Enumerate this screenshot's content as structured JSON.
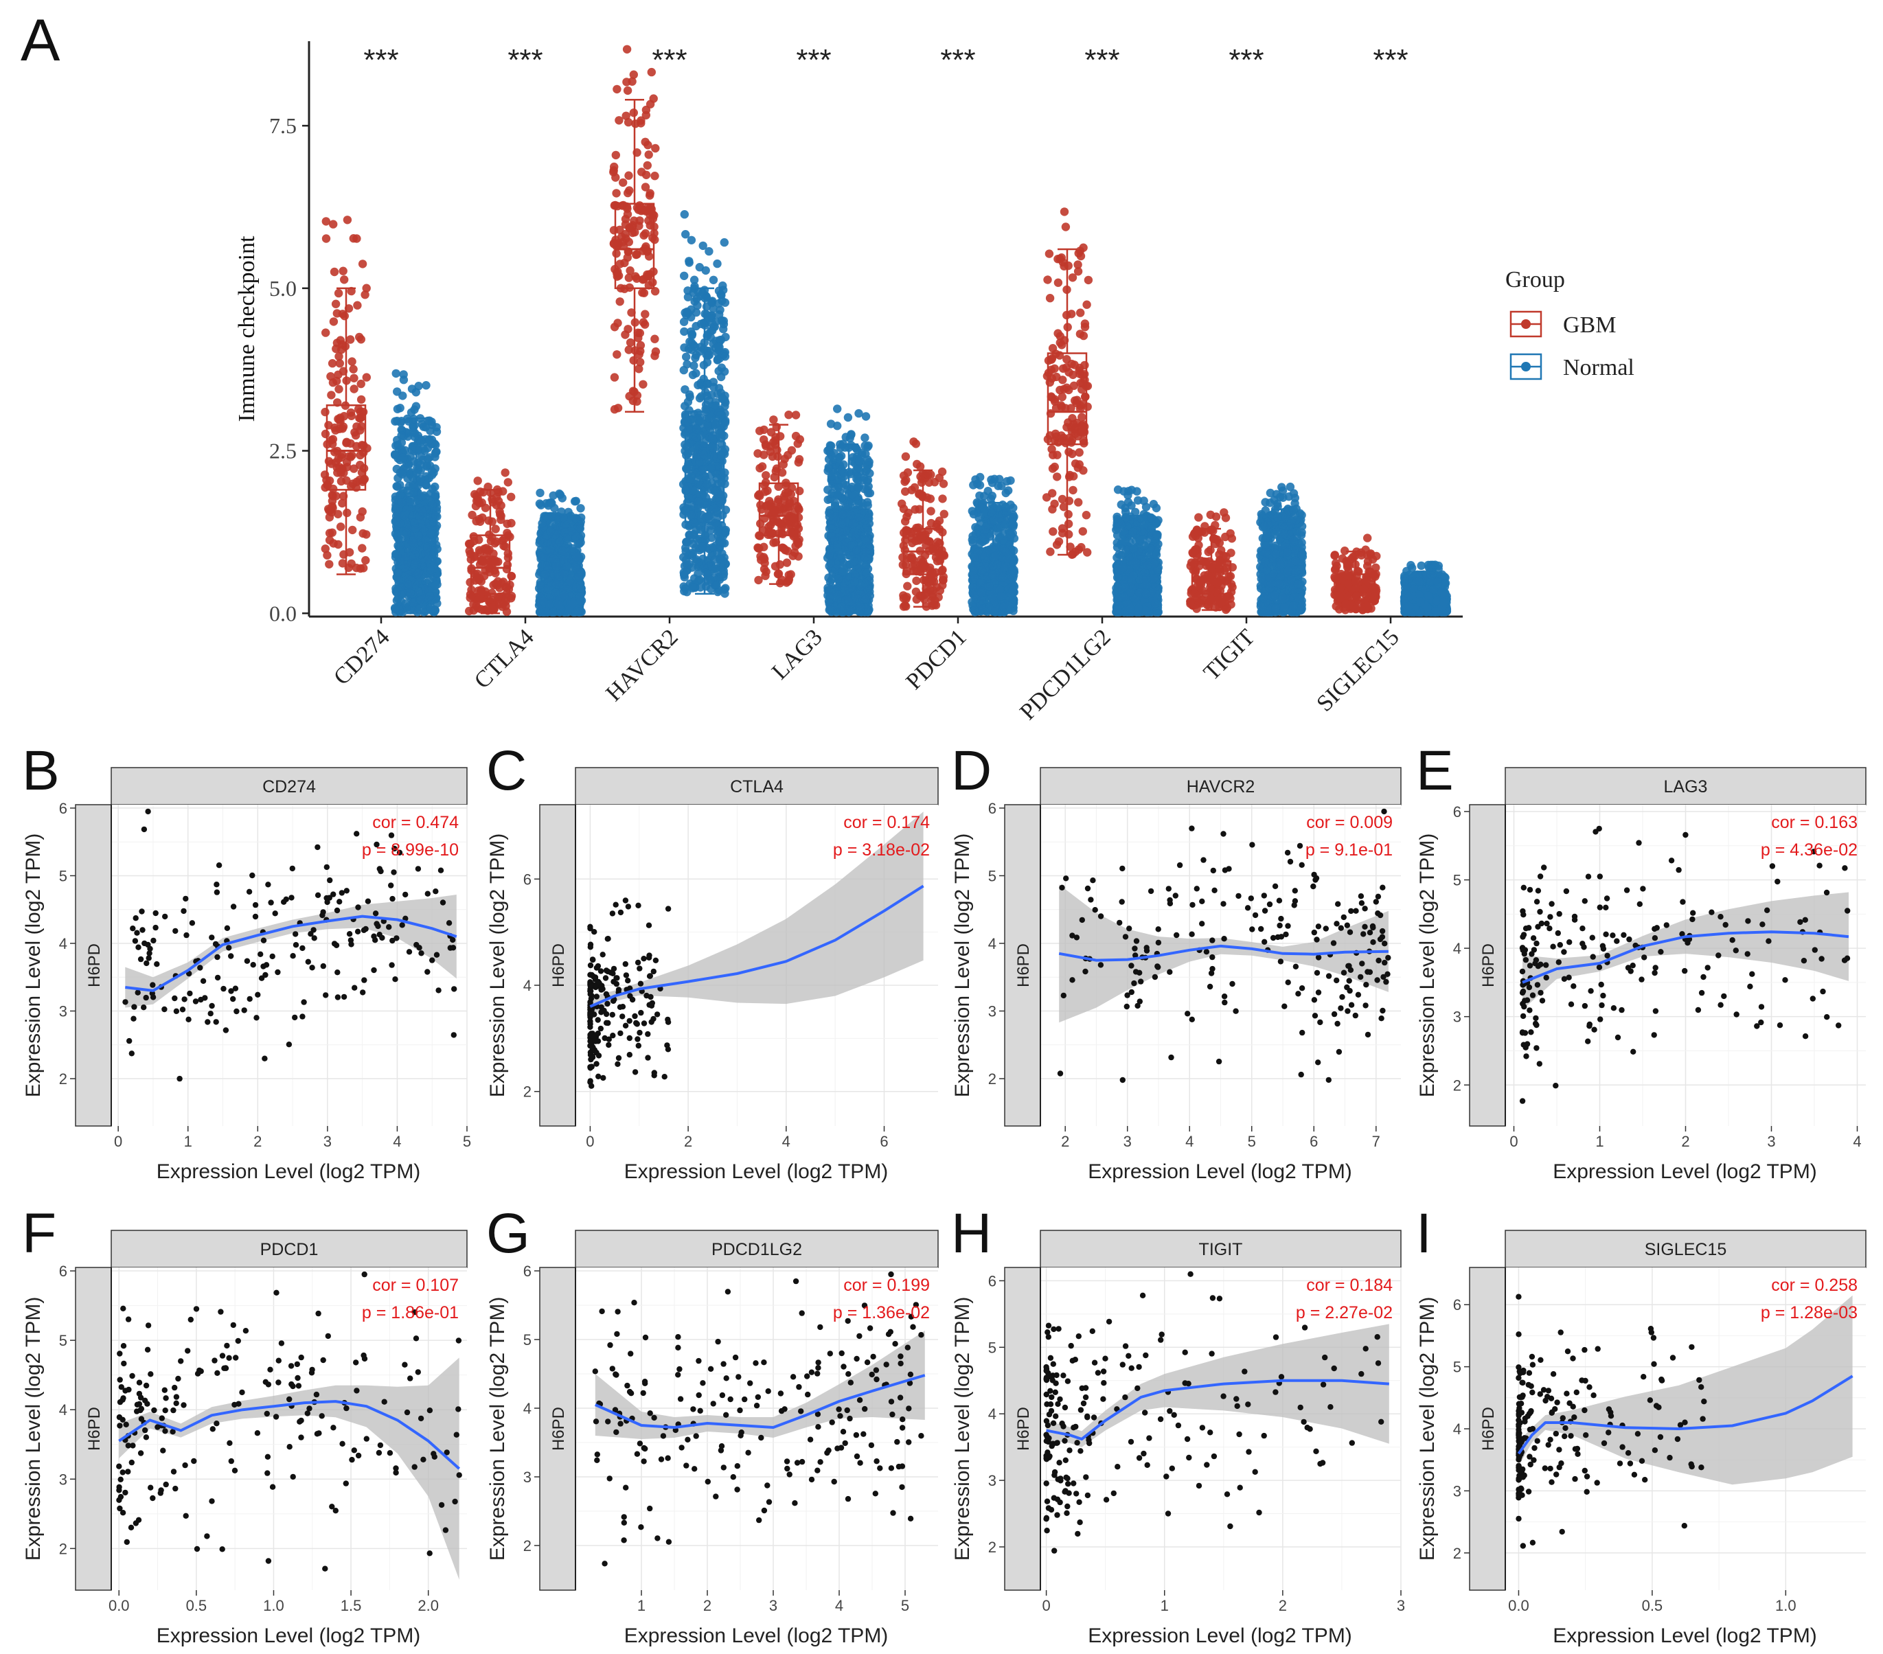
{
  "figure": {
    "colors": {
      "gbm": "#c0392b",
      "normal": "#1f77b4",
      "cor_text": "#e31a1c",
      "loess": "#3366ff",
      "ribbon": "#bdbdbd",
      "strip": "#d9d9d9"
    }
  },
  "chart_data": [
    {
      "panel": "A",
      "type": "box",
      "ylabel": "Immune checkpoint",
      "ylim": [
        -0.05,
        8.8
      ],
      "yticks": [
        "0.0",
        "2.5",
        "5.0",
        "7.5"
      ],
      "ytick_values": [
        0,
        2.5,
        5,
        7.5
      ],
      "categories": [
        "CD274",
        "CTLA4",
        "HAVCR2",
        "LAG3",
        "PDCD1",
        "PDCD1LG2",
        "TIGIT",
        "SIGLEC15"
      ],
      "significance": [
        "***",
        "***",
        "***",
        "***",
        "***",
        "***",
        "***",
        "***"
      ],
      "legend": {
        "title": "Group",
        "entries": [
          "GBM",
          "Normal"
        ],
        "position": "right"
      },
      "series": [
        {
          "name": "GBM",
          "boxes": [
            {
              "min": 0.6,
              "q1": 1.9,
              "median": 2.5,
              "q3": 3.2,
              "max": 5.0
            },
            {
              "min": 0.0,
              "q1": 0.3,
              "median": 0.7,
              "q3": 1.2,
              "max": 1.9
            },
            {
              "min": 3.1,
              "q1": 5.0,
              "median": 5.6,
              "q3": 6.3,
              "max": 7.9
            },
            {
              "min": 0.45,
              "q1": 1.2,
              "median": 1.5,
              "q3": 2.0,
              "max": 2.9
            },
            {
              "min": 0.1,
              "q1": 0.6,
              "median": 0.95,
              "q3": 1.3,
              "max": 2.2
            },
            {
              "min": 0.9,
              "q1": 2.6,
              "median": 3.1,
              "q3": 4.0,
              "max": 5.6
            },
            {
              "min": 0.05,
              "q1": 0.3,
              "median": 0.5,
              "q3": 0.8,
              "max": 1.3
            },
            {
              "min": 0.05,
              "q1": 0.2,
              "median": 0.35,
              "q3": 0.6,
              "max": 0.95
            }
          ]
        },
        {
          "name": "Normal",
          "boxes": [
            {
              "min": 0.0,
              "q1": 0.6,
              "median": 1.1,
              "q3": 1.8,
              "max": 3.0
            },
            {
              "min": 0.0,
              "q1": 0.2,
              "median": 0.5,
              "q3": 0.9,
              "max": 1.5
            },
            {
              "min": 0.3,
              "q1": 1.4,
              "median": 2.2,
              "q3": 3.1,
              "max": 5.0
            },
            {
              "min": 0.0,
              "q1": 0.4,
              "median": 0.9,
              "q3": 1.6,
              "max": 2.6
            },
            {
              "min": 0.0,
              "q1": 0.3,
              "median": 0.6,
              "q3": 1.0,
              "max": 1.7
            },
            {
              "min": 0.0,
              "q1": 0.2,
              "median": 0.45,
              "q3": 0.8,
              "max": 1.5
            },
            {
              "min": 0.0,
              "q1": 0.3,
              "median": 0.6,
              "q3": 1.0,
              "max": 1.6
            },
            {
              "min": 0.0,
              "q1": 0.1,
              "median": 0.2,
              "q3": 0.35,
              "max": 0.6
            }
          ]
        }
      ]
    },
    {
      "panel": "B",
      "type": "scatter",
      "strip": "CD274",
      "ylabel": "Expression Level (log2 TPM)",
      "xlabel": "Expression Level (log2 TPM)",
      "side_label": "H6PD",
      "cor": "cor = 0.474",
      "p": "p = 8.99e-10",
      "xlim": [
        -0.1,
        5.0
      ],
      "ylim": [
        1.3,
        6.05
      ],
      "xticks": [
        0,
        1,
        2,
        3,
        4,
        5
      ],
      "xtick_labels": [
        "0",
        "1",
        "2",
        "3",
        "4",
        "5"
      ],
      "yticks": [
        2,
        3,
        4,
        5,
        6
      ],
      "ytick_labels": [
        "2",
        "3",
        "4",
        "5",
        "6"
      ],
      "xmin": 0.1,
      "xmax": 4.85,
      "xmode": "uniform",
      "x_density": 1.8,
      "ymean": 3.9,
      "ysd": 0.68,
      "n": 200,
      "seed": 11,
      "loess_x": [
        0.1,
        0.5,
        1.0,
        1.5,
        2.0,
        2.5,
        3.0,
        3.5,
        4.0,
        4.5,
        4.85
      ],
      "loess_y": [
        3.35,
        3.3,
        3.6,
        3.98,
        4.12,
        4.25,
        4.33,
        4.4,
        4.35,
        4.22,
        4.1
      ],
      "band": [
        0.3,
        0.2,
        0.12,
        0.1,
        0.1,
        0.1,
        0.12,
        0.17,
        0.27,
        0.45,
        0.62
      ]
    },
    {
      "panel": "C",
      "type": "scatter",
      "strip": "CTLA4",
      "ylabel": "Expression Level (log2 TPM)",
      "xlabel": "Expression Level (log2 TPM)",
      "side_label": "H6PD",
      "cor": "cor = 0.174",
      "p": "p = 3.18e-02",
      "xlim": [
        -0.3,
        7.1
      ],
      "ylim": [
        1.35,
        7.4
      ],
      "xticks": [
        0,
        2,
        4,
        6
      ],
      "xtick_labels": [
        "0",
        "2",
        "4",
        "6"
      ],
      "yticks": [
        2,
        4,
        6
      ],
      "ytick_labels": [
        "2",
        "4",
        "6"
      ],
      "xmin": 0.0,
      "xmax": 1.6,
      "xmode": "right",
      "x_density": 3.0,
      "ymean": 3.7,
      "ysd": 0.7,
      "n": 200,
      "seed": 23,
      "loess_x": [
        0,
        0.5,
        1.0,
        2.0,
        3.0,
        4.0,
        5.0,
        6.0,
        6.8
      ],
      "loess_y": [
        3.6,
        3.8,
        3.93,
        4.07,
        4.22,
        4.45,
        4.85,
        5.4,
        5.87
      ],
      "band": [
        0.18,
        0.1,
        0.12,
        0.3,
        0.55,
        0.8,
        1.05,
        1.25,
        1.4
      ]
    },
    {
      "panel": "D",
      "type": "scatter",
      "strip": "HAVCR2",
      "ylabel": "Expression Level (log2 TPM)",
      "xlabel": "Expression Level (log2 TPM)",
      "side_label": "H6PD",
      "cor": "cor = 0.009",
      "p": "p = 9.1e-01",
      "xlim": [
        1.6,
        7.4
      ],
      "ylim": [
        1.3,
        6.05
      ],
      "xticks": [
        2,
        3,
        4,
        5,
        6,
        7
      ],
      "xtick_labels": [
        "2",
        "3",
        "4",
        "5",
        "6",
        "7"
      ],
      "yticks": [
        2,
        3,
        4,
        5,
        6
      ],
      "ytick_labels": [
        "2",
        "3",
        "4",
        "5",
        "6"
      ],
      "xmin": 1.9,
      "xmax": 7.2,
      "xmode": "left",
      "x_density": 1.5,
      "ymean": 3.85,
      "ysd": 0.75,
      "n": 200,
      "seed": 37,
      "loess_x": [
        1.9,
        2.5,
        3.0,
        3.5,
        4.0,
        4.5,
        5.0,
        5.5,
        6.0,
        6.5,
        7.2
      ],
      "loess_y": [
        3.85,
        3.75,
        3.76,
        3.82,
        3.9,
        3.96,
        3.92,
        3.85,
        3.84,
        3.87,
        3.88
      ],
      "band": [
        1.02,
        0.7,
        0.45,
        0.28,
        0.17,
        0.12,
        0.1,
        0.1,
        0.18,
        0.35,
        0.6
      ]
    },
    {
      "panel": "E",
      "type": "scatter",
      "strip": "LAG3",
      "ylabel": "Expression Level (log2 TPM)",
      "xlabel": "Expression Level (log2 TPM)",
      "side_label": "H6PD",
      "cor": "cor = 0.163",
      "p": "p = 4.36e-02",
      "xlim": [
        -0.1,
        4.1
      ],
      "ylim": [
        1.4,
        6.1
      ],
      "xticks": [
        0,
        1,
        2,
        3,
        4
      ],
      "xtick_labels": [
        "0",
        "1",
        "2",
        "3",
        "4"
      ],
      "yticks": [
        2,
        3,
        4,
        5,
        6
      ],
      "ytick_labels": [
        "2",
        "3",
        "4",
        "5",
        "6"
      ],
      "xmin": 0.1,
      "xmax": 3.9,
      "xmode": "right",
      "x_density": 2.2,
      "ymean": 3.8,
      "ysd": 0.75,
      "n": 200,
      "seed": 41,
      "loess_x": [
        0.1,
        0.5,
        1.0,
        1.5,
        2.0,
        2.5,
        3.0,
        3.5,
        3.9
      ],
      "loess_y": [
        3.5,
        3.7,
        3.78,
        4.03,
        4.17,
        4.22,
        4.24,
        4.22,
        4.17
      ],
      "band": [
        0.4,
        0.15,
        0.12,
        0.15,
        0.25,
        0.35,
        0.45,
        0.55,
        0.65
      ]
    },
    {
      "panel": "F",
      "type": "scatter",
      "strip": "PDCD1",
      "ylabel": "Expression Level (log2 TPM)",
      "xlabel": "Expression Level (log2 TPM)",
      "side_label": "H6PD",
      "cor": "cor = 0.107",
      "p": "p = 1.86e-01",
      "xlim": [
        -0.05,
        2.25
      ],
      "ylim": [
        1.4,
        6.05
      ],
      "xticks": [
        0.0,
        0.5,
        1.0,
        1.5,
        2.0
      ],
      "xtick_labels": [
        "0.0",
        "0.5",
        "1.0",
        "1.5",
        "2.0"
      ],
      "yticks": [
        2,
        3,
        4,
        5,
        6
      ],
      "ytick_labels": [
        "2",
        "3",
        "4",
        "5",
        "6"
      ],
      "xmin": 0.0,
      "xmax": 2.2,
      "xmode": "right",
      "x_density": 1.8,
      "ymean": 3.85,
      "ysd": 0.8,
      "n": 200,
      "seed": 53,
      "loess_x": [
        0,
        0.2,
        0.4,
        0.6,
        0.8,
        1.0,
        1.2,
        1.4,
        1.6,
        1.8,
        2.0,
        2.2
      ],
      "loess_y": [
        3.55,
        3.85,
        3.7,
        3.92,
        4.0,
        4.05,
        4.1,
        4.12,
        4.05,
        3.85,
        3.55,
        3.15
      ],
      "band": [
        0.25,
        0.12,
        0.1,
        0.12,
        0.13,
        0.15,
        0.18,
        0.23,
        0.3,
        0.48,
        0.8,
        1.6
      ]
    },
    {
      "panel": "G",
      "type": "scatter",
      "strip": "PDCD1LG2",
      "ylabel": "Expression Level (log2 TPM)",
      "xlabel": "Expression Level (log2 TPM)",
      "side_label": "H6PD",
      "cor": "cor = 0.199",
      "p": "p = 1.36e-02",
      "xlim": [
        0.0,
        5.5
      ],
      "ylim": [
        1.35,
        6.05
      ],
      "xticks": [
        1,
        2,
        3,
        4,
        5
      ],
      "xtick_labels": [
        "1",
        "2",
        "3",
        "4",
        "5"
      ],
      "yticks": [
        2,
        3,
        4,
        5,
        6
      ],
      "ytick_labels": [
        "2",
        "3",
        "4",
        "5",
        "6"
      ],
      "xmin": 0.3,
      "xmax": 5.3,
      "xmode": "uniform",
      "x_density": 1.0,
      "ymean": 3.85,
      "ysd": 0.75,
      "n": 200,
      "seed": 67,
      "loess_x": [
        0.3,
        1.0,
        1.5,
        2.0,
        2.5,
        3.0,
        3.5,
        4.0,
        4.5,
        5.3
      ],
      "loess_y": [
        4.05,
        3.75,
        3.72,
        3.78,
        3.75,
        3.72,
        3.9,
        4.1,
        4.25,
        4.48
      ],
      "band": [
        0.45,
        0.2,
        0.15,
        0.12,
        0.12,
        0.15,
        0.18,
        0.25,
        0.38,
        0.65
      ]
    },
    {
      "panel": "H",
      "type": "scatter",
      "strip": "TIGIT",
      "ylabel": "Expression Level (log2 TPM)",
      "xlabel": "Expression Level (log2 TPM)",
      "side_label": "H6PD",
      "cor": "cor = 0.184",
      "p": "p = 2.27e-02",
      "xlim": [
        -0.05,
        3.0
      ],
      "ylim": [
        1.35,
        6.2
      ],
      "xticks": [
        0,
        1,
        2,
        3
      ],
      "xtick_labels": [
        "0",
        "1",
        "2",
        "3"
      ],
      "yticks": [
        2,
        3,
        4,
        5,
        6
      ],
      "ytick_labels": [
        "2",
        "3",
        "4",
        "5",
        "6"
      ],
      "xmin": 0.0,
      "xmax": 2.9,
      "xmode": "right",
      "x_density": 3.0,
      "ymean": 3.8,
      "ysd": 0.75,
      "n": 200,
      "seed": 79,
      "loess_x": [
        0,
        0.2,
        0.3,
        0.5,
        0.8,
        1.0,
        1.5,
        2.0,
        2.5,
        2.9
      ],
      "loess_y": [
        3.75,
        3.68,
        3.62,
        3.9,
        4.25,
        4.35,
        4.45,
        4.5,
        4.5,
        4.45
      ],
      "band": [
        0.15,
        0.12,
        0.12,
        0.15,
        0.2,
        0.25,
        0.4,
        0.55,
        0.72,
        0.9
      ]
    },
    {
      "panel": "I",
      "type": "scatter",
      "strip": "SIGLEC15",
      "ylabel": "Expression Level (log2 TPM)",
      "xlabel": "Expression Level (log2 TPM)",
      "side_label": "H6PD",
      "cor": "cor = 0.258",
      "p": "p = 1.28e-03",
      "xlim": [
        -0.05,
        1.3
      ],
      "ylim": [
        1.4,
        6.6
      ],
      "xticks": [
        0.0,
        0.5,
        1.0
      ],
      "xtick_labels": [
        "0.0",
        "0.5",
        "1.0"
      ],
      "yticks": [
        2,
        3,
        4,
        5,
        6
      ],
      "ytick_labels": [
        "2",
        "3",
        "4",
        "5",
        "6"
      ],
      "xmin": 0.0,
      "xmax": 0.7,
      "xmode": "right",
      "x_density": 4.0,
      "ymean": 3.75,
      "ysd": 0.8,
      "n": 200,
      "seed": 97,
      "loess_x": [
        0,
        0.05,
        0.1,
        0.2,
        0.4,
        0.6,
        0.8,
        1.0,
        1.1,
        1.25
      ],
      "loess_y": [
        3.6,
        3.9,
        4.1,
        4.1,
        4.02,
        4.0,
        4.05,
        4.25,
        4.45,
        4.85
      ],
      "band": [
        0.2,
        0.12,
        0.12,
        0.2,
        0.5,
        0.7,
        0.95,
        1.05,
        1.15,
        1.3
      ]
    }
  ]
}
